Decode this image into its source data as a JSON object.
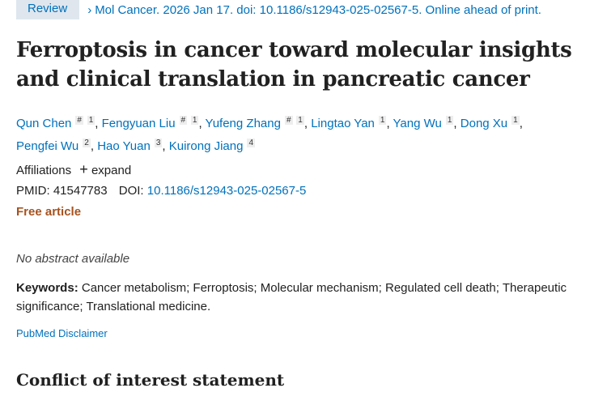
{
  "header": {
    "badge": "Review",
    "chevron": "›",
    "citation": "Mol Cancer. 2026 Jan 17. doi: 10.1186/s12943-025-02567-5. Online ahead of print."
  },
  "title": "Ferroptosis in cancer toward molecular insights and clinical translation in pancreatic cancer",
  "authors": [
    {
      "name": "Qun Chen",
      "equal": "#",
      "aff": "1"
    },
    {
      "name": "Fengyuan Liu",
      "equal": "#",
      "aff": "1"
    },
    {
      "name": "Yufeng Zhang",
      "equal": "#",
      "aff": "1"
    },
    {
      "name": "Lingtao Yan",
      "aff": "1"
    },
    {
      "name": "Yang Wu",
      "aff": "1"
    },
    {
      "name": "Dong Xu",
      "aff": "1"
    },
    {
      "name": "Pengfei Wu",
      "aff": "2"
    },
    {
      "name": "Hao Yuan",
      "aff": "3"
    },
    {
      "name": "Kuirong Jiang",
      "aff": "4"
    }
  ],
  "affiliations": {
    "label": "Affiliations",
    "expand_icon": "+",
    "expand": "expand"
  },
  "ids": {
    "pmid_label": "PMID:",
    "pmid": "41547783",
    "doi_label": "DOI:",
    "doi": "10.1186/s12943-025-02567-5"
  },
  "free_article": "Free article",
  "abstract": "No abstract available",
  "keywords": {
    "label": "Keywords:",
    "text": "Cancer metabolism; Ferroptosis; Molecular mechanism; Regulated cell death; Therapeutic significance; Translational medicine."
  },
  "disclaimer": "PubMed Disclaimer",
  "section_title": "Conflict of interest statement",
  "colors": {
    "link": "#0071bc",
    "free": "#a7521e",
    "badge_bg": "#dfe6ee"
  }
}
